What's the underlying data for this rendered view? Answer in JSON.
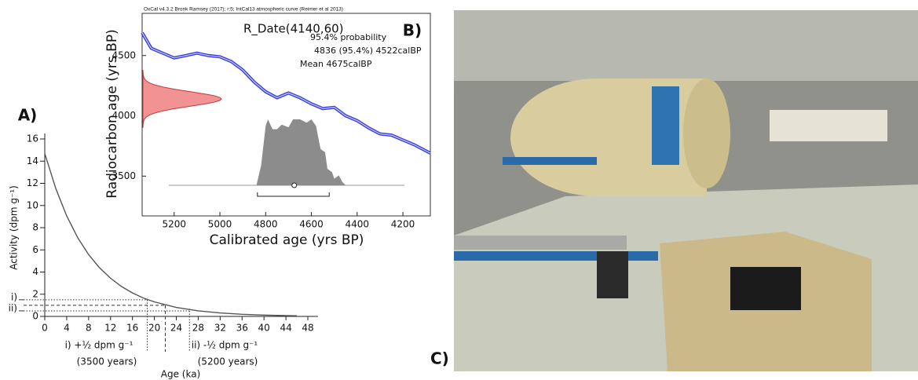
{
  "chart_data": [
    {
      "type": "line",
      "label": "A)",
      "x_label": "Age (ka)",
      "y_label": "Activity (dpm g⁻¹)",
      "x": [
        0,
        2,
        4,
        6,
        8,
        10,
        12,
        14,
        16,
        18,
        20,
        24,
        28,
        32,
        36,
        40,
        44,
        46
      ],
      "values": [
        14.7,
        11.54,
        9.06,
        7.11,
        5.58,
        4.38,
        3.44,
        2.7,
        2.12,
        1.66,
        1.31,
        0.81,
        0.5,
        0.31,
        0.19,
        0.12,
        0.07,
        0.06
      ],
      "color": "#555555",
      "xlim": [
        0,
        48
      ],
      "xticks": [
        0,
        4,
        8,
        12,
        16,
        20,
        24,
        28,
        32,
        36,
        40,
        44,
        48
      ],
      "ylim": [
        0,
        16
      ],
      "yticks": [
        0,
        2,
        4,
        6,
        8,
        10,
        12,
        14,
        16
      ],
      "guides": [
        {
          "x": 18.7,
          "y": 1.5,
          "style": "dotted"
        },
        {
          "x": 22,
          "y": 1.0,
          "style": "dashed"
        },
        {
          "x": 26.4,
          "y": 0.5,
          "style": "dotted"
        }
      ],
      "guide_ticks": [
        {
          "value": 1.5,
          "label": "i)"
        },
        {
          "value": 0.5,
          "label": "ii)"
        }
      ],
      "annotations": [
        "i) +½ dpm g⁻¹",
        "(3500 years)",
        "ii) -½ dpm g⁻¹",
        "(5200 years)"
      ]
    },
    {
      "type": "line",
      "label": "B)",
      "header": "OxCal v4.3.2 Bronk Ramsey (2017); r:5; IntCal13 atmospheric curve (Reimer et al 2013)",
      "title": "R_Date(4140,60)",
      "texts": [
        "95.4% probability",
        "4836 (95.4%) 4522calBP",
        "Mean 4675calBP"
      ],
      "x_label": "Calibrated age (yrs BP)",
      "y_label": "Radiocarbon age (yrs BP)",
      "x": [
        5340,
        5300,
        5250,
        5200,
        5150,
        5100,
        5050,
        5000,
        4950,
        4900,
        4850,
        4800,
        4750,
        4700,
        4650,
        4600,
        4550,
        4500,
        4450,
        4400,
        4350,
        4300,
        4250,
        4200,
        4150,
        4080
      ],
      "values": [
        4690,
        4560,
        4520,
        4480,
        4500,
        4520,
        4500,
        4490,
        4450,
        4380,
        4280,
        4200,
        4150,
        4190,
        4150,
        4100,
        4060,
        4070,
        4000,
        3960,
        3900,
        3850,
        3840,
        3800,
        3760,
        3690
      ],
      "color": "#3a3fe0",
      "density": {
        "x": [
          4840,
          4820,
          4800,
          4790,
          4770,
          4750,
          4730,
          4700,
          4680,
          4650,
          4620,
          4600,
          4580,
          4560,
          4540,
          4530,
          4510,
          4500,
          4480,
          4465,
          4450
        ],
        "values": [
          0,
          0.3,
          0.9,
          1.0,
          0.85,
          0.85,
          0.92,
          0.88,
          1.0,
          1.0,
          0.95,
          1.0,
          0.9,
          0.55,
          0.5,
          0.25,
          0.2,
          0.1,
          0.15,
          0.05,
          0
        ],
        "color": "#8c8c8c"
      },
      "measurement": {
        "mean": 4140,
        "sd": 60,
        "color": "#f29393"
      },
      "range": [
        4836,
        4522
      ],
      "mean": 4675,
      "xlim": [
        5340,
        4080
      ],
      "xticks": [
        5200,
        5000,
        4800,
        4600,
        4400,
        4200
      ],
      "ylim": [
        3170,
        4850
      ],
      "yticks": [
        3500,
        4000,
        4500
      ]
    }
  ],
  "photo": {
    "label": "C)"
  }
}
